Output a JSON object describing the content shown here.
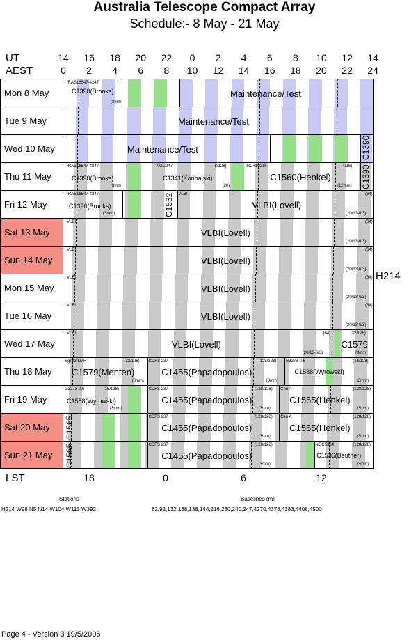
{
  "title": "Australia Telescope Compact Array",
  "subtitle": "Schedule:- 8  May - 21 May",
  "labels": {
    "ut": "UT",
    "aest": "AEST",
    "lst": "LST"
  },
  "ut_ticks": [
    "14",
    "16",
    "18",
    "20",
    "22",
    "0",
    "2",
    "4",
    "6",
    "8",
    "10",
    "12",
    "14"
  ],
  "aest_ticks": [
    "0",
    "2",
    "4",
    "6",
    "8",
    "10",
    "12",
    "14",
    "16",
    "18",
    "20",
    "22",
    "24"
  ],
  "lst_ticks": [
    "18",
    "0",
    "6",
    "12"
  ],
  "config": "H214",
  "colors": {
    "weekend": "#f48f86",
    "maintenance": "#c9c9f5",
    "observation": "#c9c9c9",
    "green": "#96e08a"
  },
  "days": [
    {
      "label": "Mon  8  May",
      "weekend": false
    },
    {
      "label": "Tue  9  May",
      "weekend": false
    },
    {
      "label": "Wed 10 May",
      "weekend": false
    },
    {
      "label": "Thu  11 May",
      "weekend": false
    },
    {
      "label": "Fri   12 May",
      "weekend": false
    },
    {
      "label": "Sat  13 May",
      "weekend": true
    },
    {
      "label": "Sun  14 May",
      "weekend": true
    },
    {
      "label": "Mon 15 May",
      "weekend": false
    },
    {
      "label": "Tue  16 May",
      "weekend": false
    },
    {
      "label": "Wed 17 May",
      "weekend": false
    },
    {
      "label": "Thu  18 May",
      "weekend": false
    },
    {
      "label": "Fri   19 May",
      "weekend": false
    },
    {
      "label": "Sat  20 May",
      "weekend": true
    },
    {
      "label": "Sun  21 May",
      "weekend": true
    }
  ],
  "blocks": {
    "r0": {
      "src": "IRAS16547-4247",
      "proj": "C1390(Brooks)",
      "note": "(3mm)",
      "main": "Maintenance/Test"
    },
    "r1": {
      "main": "Maintenance/Test"
    },
    "r2": {
      "main": "Maintenance/Test",
      "vert": "C1390"
    },
    "r3": {
      "src": "IRAS16547-4247",
      "proj": "C1390(Brooks)",
      "note": "(3mm)",
      "src2": "NGC247",
      "ch2": "(8/128)",
      "proj2": "C1341(Koribalski)",
      "note2": "(20)",
      "src3": "IRC+10216",
      "ch3": "(4/16)",
      "proj3": "C1560(Henkel)",
      "note3": "(12mm)",
      "vert": "C1390"
    },
    "r4": {
      "src": "IRAS16547-4247",
      "proj": "C1390(Brooks)",
      "note": "(3mm)",
      "vert": "C1532",
      "src2": "VLBI",
      "proj2": "VLBI(Lovell)",
      "ch2": "(64)",
      "note2": "(20/13-6/3)"
    },
    "vlbi": {
      "src": "VLBI",
      "proj": "VLBI(Lovell)",
      "ch": "(64)",
      "note": "(20/13-6/3)"
    },
    "r9": {
      "src": "VLBI",
      "proj": "VLBI(Lovell)",
      "ch": "(64)",
      "note": "(20/13-6/3)",
      "ch2": "(32/128)",
      "proj2": "C1579",
      "note2": "(3mm)"
    },
    "r10": {
      "src": "SgrB2-LMH",
      "ch": "(32/128)",
      "proj": "C1579(Menten)",
      "note": "(3mm)",
      "src2": "CDFS 237",
      "ch2": "(128/128)",
      "proj2": "C1455(Papadopoulos)",
      "note2": "(3mm)",
      "src3": "G3273-0.6",
      "ch3": "(16/128)",
      "proj3": "C1588(Wyrowski)",
      "note3": "(3mm)"
    },
    "r11": {
      "src": "G3273-0.6",
      "ch": "(16/128)",
      "proj": "C1588(Wyrowski)",
      "note": "(3mm)",
      "src2": "CDFS 237",
      "ch2": "(128/128)",
      "proj2": "C1455(Papadopoulos)",
      "note2": "(3mm)",
      "src3": "Cen A",
      "ch3": "(128/128)",
      "proj3": "C1565(Henkel)",
      "note3": "(3mm)"
    },
    "r12": {
      "vert": "C1565",
      "src2": "CDFS 237",
      "ch2": "(128/128)",
      "proj2": "C1455(Papadopoulos)",
      "note2": "(3mm)",
      "src3": "Cen A",
      "ch3": "(128/128)",
      "proj3": "C1565(Henkel)",
      "note3": "(3mm)"
    },
    "r13": {
      "vert": "C1565",
      "src2": "CDFS 237",
      "ch2": "(128/128)",
      "proj2": "C1455(Papadopoulos)",
      "note2": "(3mm)",
      "src3": "NGC5334",
      "ch3": "(128/128)",
      "proj3": "C1536(Beuther)",
      "note3": "(3mm)"
    }
  },
  "stations": {
    "heading": "Stations",
    "value": "H214   W98 N5 N14 W104 W113 W392"
  },
  "baselines": {
    "heading": "Baselines (m)",
    "value": "82,92,132,138,138,144,216,230,240,247,4270,4378,4383,4408,4500"
  },
  "footer": "Page 4 - Version 3  19/5/2006"
}
